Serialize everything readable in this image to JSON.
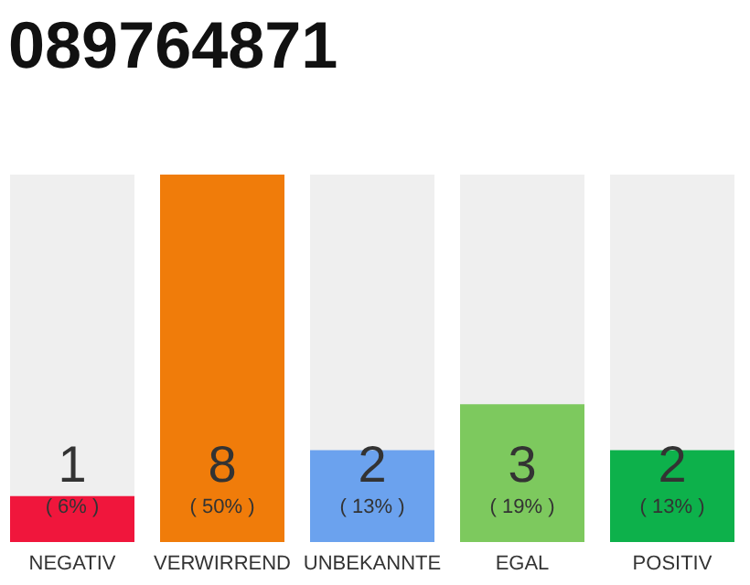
{
  "chart_data": {
    "type": "bar",
    "title": "089764871",
    "categories": [
      "NEGATIV",
      "VERWIRREND",
      "UNBEKANNTE",
      "EGAL",
      "POSITIV"
    ],
    "values": [
      1,
      8,
      2,
      3,
      2
    ],
    "colors": [
      "#f0163c",
      "#f07c0a",
      "#6ba2ee",
      "#7dc95e",
      "#0db14b"
    ],
    "ylim": [
      0,
      8
    ],
    "data_labels": true,
    "tick_labels": "x",
    "annotations": [
      "( 6% )",
      "( 50% )",
      "( 13% )",
      "( 19% )",
      "( 13% )"
    ]
  }
}
